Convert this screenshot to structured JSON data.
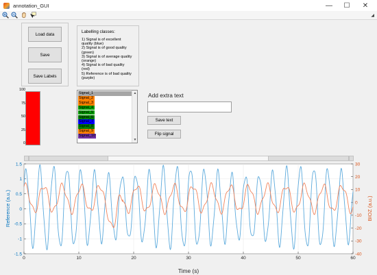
{
  "window": {
    "title": "annotation_GUI",
    "icon": "matlab-figure-icon",
    "controls": [
      "minimize-icon",
      "maximize-icon",
      "close-icon"
    ]
  },
  "toolbar": {
    "tools": [
      "zoom-in-icon",
      "zoom-out-icon",
      "pan-hand-icon",
      "data-cursor-icon"
    ],
    "grip": "toolbar-grip-icon"
  },
  "buttons": {
    "load_data": "Load data",
    "save": "Save",
    "save_labels": "Save Labels",
    "save_text": "Save text",
    "flip_signal": "Flip signal"
  },
  "classes": {
    "title": "Labelling classes:",
    "lines": [
      "1) Signal is of excellent",
      "quality (blue)",
      "2) Signal is of good quality",
      "(green)",
      "3) Signal is of average quality",
      "(orange)",
      "4) Signal is of bad quality",
      "(red)",
      "5) Reference is of bad quality",
      "(purple)"
    ]
  },
  "level_meter": {
    "ticks": [
      "100",
      "75",
      "50",
      "25",
      "0"
    ],
    "value_percent": 100,
    "color": "#ff0000"
  },
  "signal_list": {
    "items": [
      {
        "label": "Signal_1",
        "color": "#a6a6a6"
      },
      {
        "label": "Signal_2",
        "color": "#ff8000"
      },
      {
        "label": "Signal_3",
        "color": "#ff8000"
      },
      {
        "label": "Signal_4",
        "color": "#00a000"
      },
      {
        "label": "Signal_5",
        "color": "#00a000"
      },
      {
        "label": "Signal_6",
        "color": "#008000"
      },
      {
        "label": "Signal_7",
        "color": "#0000ff"
      },
      {
        "label": "Signal_8",
        "color": "#008000"
      },
      {
        "label": "Signal_9",
        "color": "#ff8000"
      },
      {
        "label": "Signal_10",
        "color": "#7030a0"
      }
    ],
    "selected_index": 0
  },
  "extra_text": {
    "title": "Add extra text",
    "value": ""
  },
  "chart_data": {
    "type": "line",
    "xlabel": "Time (s)",
    "ylabel_left": "Reference (a.u.)",
    "ylabel_right": "BIOZ (a.u.)",
    "xlim": [
      0,
      60
    ],
    "ylim_left": [
      -1.5,
      1.5
    ],
    "ylim_right": [
      -40,
      30
    ],
    "x_ticks": [
      "0",
      "10",
      "20",
      "30",
      "40",
      "50",
      "60"
    ],
    "y_ticks_left": [
      "1.5",
      "1",
      "0.5",
      "0",
      "-0.5",
      "-1",
      "-1.5"
    ],
    "y_ticks_right": [
      "30",
      "20",
      "10",
      "0",
      "-10",
      "-20",
      "-30",
      "-40"
    ],
    "grid": true,
    "series": [
      {
        "axis": "left",
        "color": "#5aa9dc",
        "period_s": 2.5,
        "amplitude": 1.2,
        "offset": 0.05
      },
      {
        "axis": "right",
        "color": "#f0825a",
        "period_s": 3.4,
        "amplitude": 10,
        "offset": 3
      }
    ]
  }
}
